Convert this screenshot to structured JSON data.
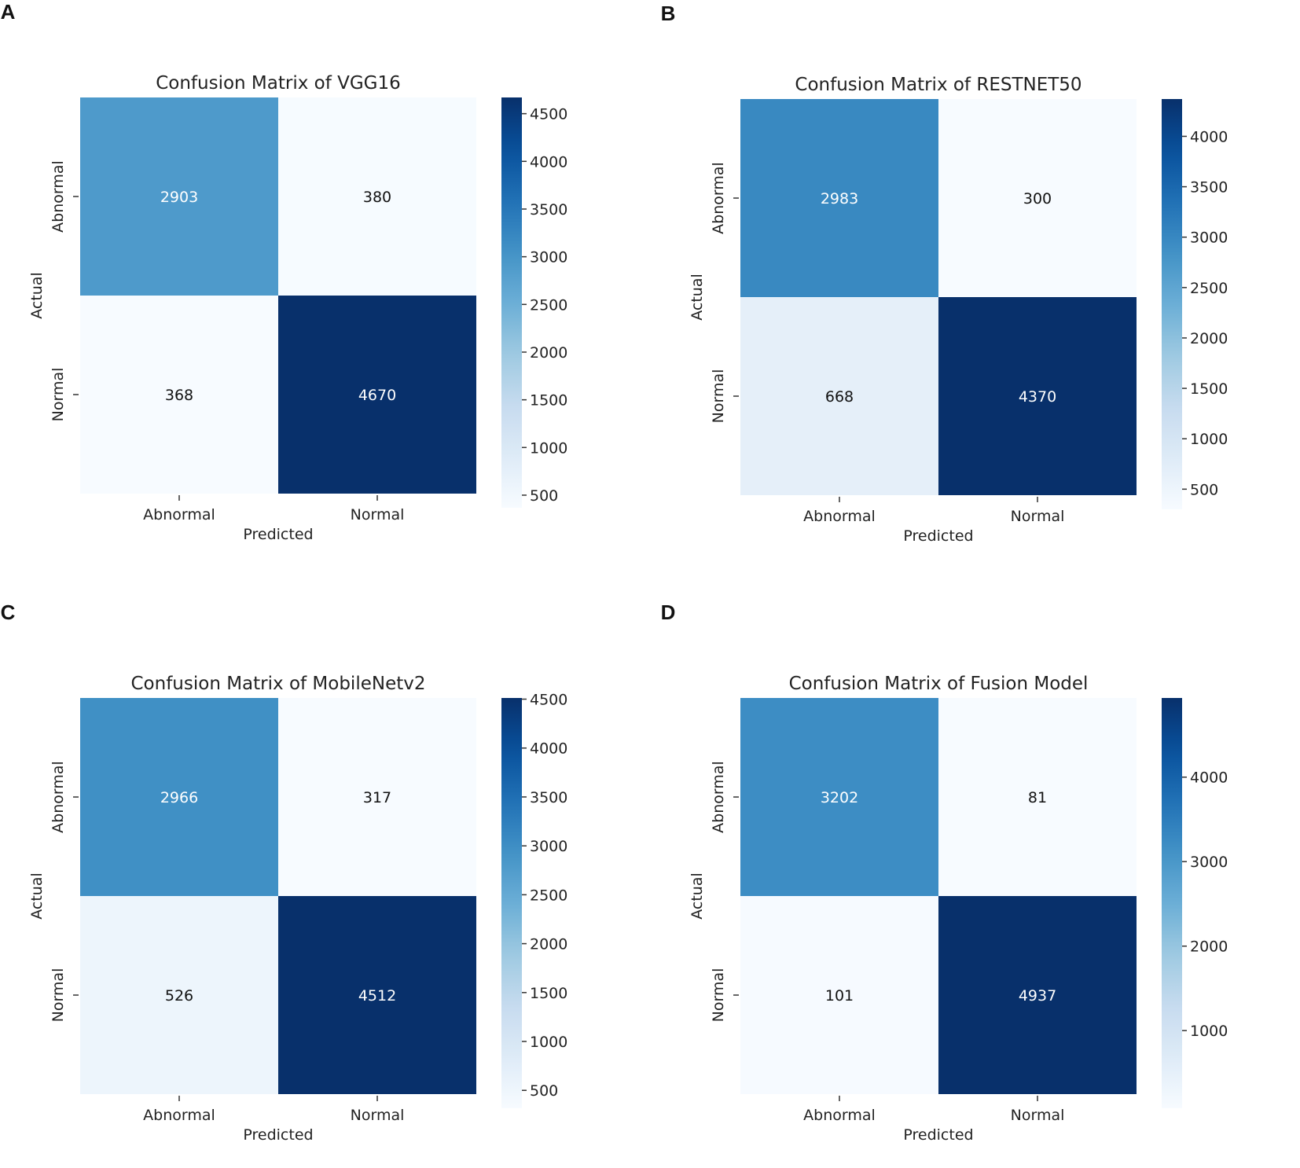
{
  "figure": {
    "panel_letters": [
      "A",
      "B",
      "C",
      "D"
    ]
  },
  "colors": {
    "cmap": [
      "#f7fbff",
      "#deebf7",
      "#c6dbef",
      "#9ecae1",
      "#6baed6",
      "#4292c6",
      "#2171b5",
      "#08519c",
      "#08306b"
    ],
    "matrix_max": "#20336b",
    "text_dark": "#111111",
    "text_light": "#ffffff"
  },
  "chart_data": [
    {
      "type": "heatmap",
      "panel": "A",
      "title": "Confusion Matrix of VGG16",
      "xlabel": "Predicted",
      "ylabel": "Actual",
      "x_categories": [
        "Abnormal",
        "Normal"
      ],
      "y_categories": [
        "Abnormal",
        "Normal"
      ],
      "values": [
        [
          2903,
          380
        ],
        [
          368,
          4670
        ]
      ],
      "cbar_range": [
        368,
        4670
      ],
      "cbar_ticks": [
        500,
        1000,
        1500,
        2000,
        2500,
        3000,
        3500,
        4000,
        4500
      ]
    },
    {
      "type": "heatmap",
      "panel": "B",
      "title": "Confusion Matrix of RESTNET50",
      "xlabel": "Predicted",
      "ylabel": "Actual",
      "x_categories": [
        "Abnormal",
        "Normal"
      ],
      "y_categories": [
        "Abnormal",
        "Normal"
      ],
      "values": [
        [
          2983,
          300
        ],
        [
          668,
          4370
        ]
      ],
      "cbar_range": [
        300,
        4370
      ],
      "cbar_ticks": [
        500,
        1000,
        1500,
        2000,
        2500,
        3000,
        3500,
        4000
      ]
    },
    {
      "type": "heatmap",
      "panel": "C",
      "title": "Confusion Matrix of MobileNetv2",
      "xlabel": "Predicted",
      "ylabel": "Actual",
      "x_categories": [
        "Abnormal",
        "Normal"
      ],
      "y_categories": [
        "Abnormal",
        "Normal"
      ],
      "values": [
        [
          2966,
          317
        ],
        [
          526,
          4512
        ]
      ],
      "cbar_range": [
        317,
        4512
      ],
      "cbar_ticks": [
        500,
        1000,
        1500,
        2000,
        2500,
        3000,
        3500,
        4000,
        4500
      ]
    },
    {
      "type": "heatmap",
      "panel": "D",
      "title": "Confusion Matrix of Fusion Model",
      "xlabel": "Predicted",
      "ylabel": "Actual",
      "x_categories": [
        "Abnormal",
        "Normal"
      ],
      "y_categories": [
        "Abnormal",
        "Normal"
      ],
      "values": [
        [
          3202,
          81
        ],
        [
          101,
          4937
        ]
      ],
      "cbar_range": [
        81,
        4937
      ],
      "cbar_ticks": [
        1000,
        2000,
        3000,
        4000
      ]
    }
  ]
}
